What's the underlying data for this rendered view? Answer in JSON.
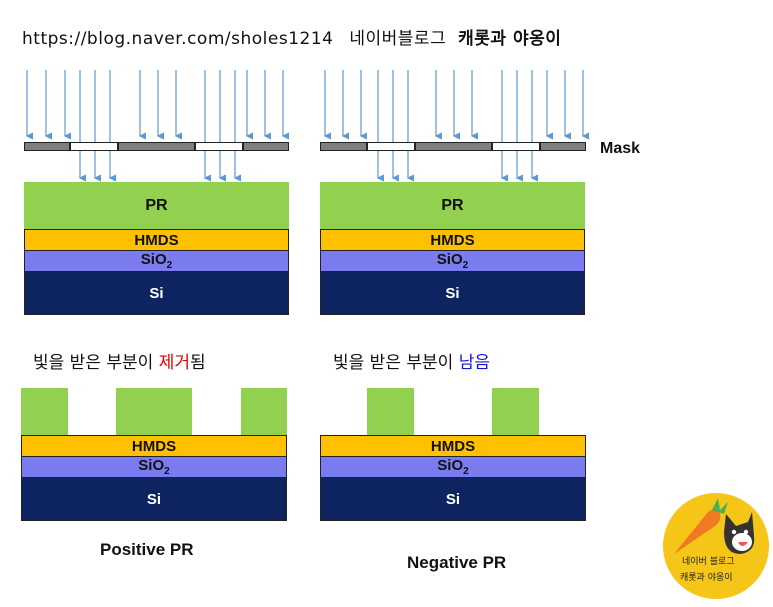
{
  "header": {
    "url": "https://blog.naver.com/sholes1214",
    "blog_label": "네이버블로그",
    "blog_name": "캐롯과 야옹이"
  },
  "labels": {
    "mask": "Mask",
    "pr": "PR",
    "hmds": "HMDS",
    "sio2_base": "SiO",
    "sio2_sub": "2",
    "si": "Si"
  },
  "positive": {
    "desc_prefix": "빛을 받은 부분이 ",
    "desc_highlight": "제거",
    "desc_suffix": "됨",
    "caption": "Positive PR",
    "highlight_color": "#e00000"
  },
  "negative": {
    "desc_prefix": "빛을 받은 부분이 ",
    "desc_highlight": "남음",
    "desc_suffix": "",
    "caption": "Negative PR",
    "highlight_color": "#1515d6"
  },
  "logo": {
    "line1": "네이버 블로그",
    "line2": "캐롯과 야옹이",
    "icon_names": [
      "carrot-icon",
      "cat-icon"
    ]
  },
  "colors": {
    "photoresist": "#92d050",
    "hmds": "#ffc000",
    "sio2": "#7b7bf0",
    "si": "#0e2461",
    "mask_opaque": "#7f7f7f",
    "light_arrow": "#5b9bd5",
    "logo_bg": "#f5c518"
  }
}
